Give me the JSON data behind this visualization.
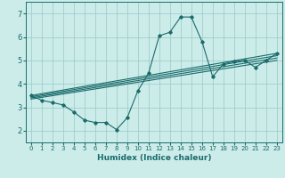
{
  "xlabel": "Humidex (Indice chaleur)",
  "ylabel": "",
  "xlim": [
    -0.5,
    23.5
  ],
  "ylim": [
    1.5,
    7.5
  ],
  "bg_color": "#ccecea",
  "line_color": "#1a6b6b",
  "grid_color": "#a0cdcb",
  "x_ticks": [
    0,
    1,
    2,
    3,
    4,
    5,
    6,
    7,
    8,
    9,
    10,
    11,
    12,
    13,
    14,
    15,
    16,
    17,
    18,
    19,
    20,
    21,
    22,
    23
  ],
  "y_ticks": [
    2,
    3,
    4,
    5,
    6,
    7
  ],
  "main_series_x": [
    0,
    1,
    2,
    3,
    4,
    5,
    6,
    7,
    8,
    9,
    10,
    11,
    12,
    13,
    14,
    15,
    16,
    17,
    18,
    19,
    20,
    21,
    22,
    23
  ],
  "main_series_y": [
    3.5,
    3.3,
    3.2,
    3.1,
    2.8,
    2.45,
    2.35,
    2.35,
    2.05,
    2.55,
    3.7,
    4.45,
    6.05,
    6.2,
    6.85,
    6.85,
    5.8,
    4.3,
    4.85,
    4.95,
    5.0,
    4.7,
    5.0,
    5.3
  ],
  "reg_lines": [
    {
      "x": [
        0,
        23
      ],
      "y": [
        3.5,
        5.3
      ]
    },
    {
      "x": [
        0,
        23
      ],
      "y": [
        3.45,
        5.2
      ]
    },
    {
      "x": [
        0,
        23
      ],
      "y": [
        3.4,
        5.1
      ]
    },
    {
      "x": [
        0,
        23
      ],
      "y": [
        3.35,
        5.0
      ]
    }
  ]
}
